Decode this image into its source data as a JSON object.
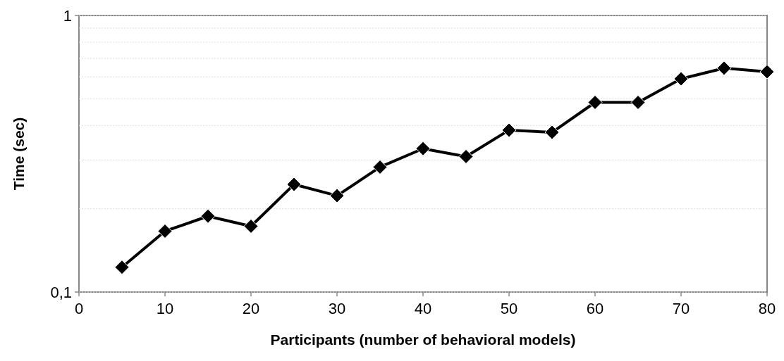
{
  "chart_data": {
    "type": "line",
    "xlabel": "Participants (number of behavioral models)",
    "ylabel": "Time (sec)",
    "x": [
      5,
      10,
      15,
      20,
      25,
      30,
      35,
      40,
      45,
      50,
      55,
      60,
      65,
      70,
      75,
      80
    ],
    "series": [
      {
        "color": "#000000",
        "values": [
          0.123,
          0.166,
          0.188,
          0.173,
          0.245,
          0.223,
          0.283,
          0.33,
          0.309,
          0.385,
          0.378,
          0.485,
          0.485,
          0.59,
          0.645,
          0.626
        ]
      }
    ],
    "xlim": [
      0,
      80
    ],
    "xticks": [
      0,
      10,
      20,
      30,
      40,
      50,
      60,
      70,
      80
    ],
    "ylim": [
      0.1,
      1
    ],
    "yticks": [
      {
        "value": 0.1,
        "label": "0,1"
      },
      {
        "value": 0.2,
        "label": null
      },
      {
        "value": 0.3,
        "label": null
      },
      {
        "value": 0.4,
        "label": null
      },
      {
        "value": 0.5,
        "label": null
      },
      {
        "value": 0.6,
        "label": null
      },
      {
        "value": 0.7,
        "label": null
      },
      {
        "value": 0.8,
        "label": null
      },
      {
        "value": 0.9,
        "label": null
      },
      1
    ],
    "log": true,
    "grid": "y",
    "marker": "diamond",
    "line_style": "solid"
  }
}
